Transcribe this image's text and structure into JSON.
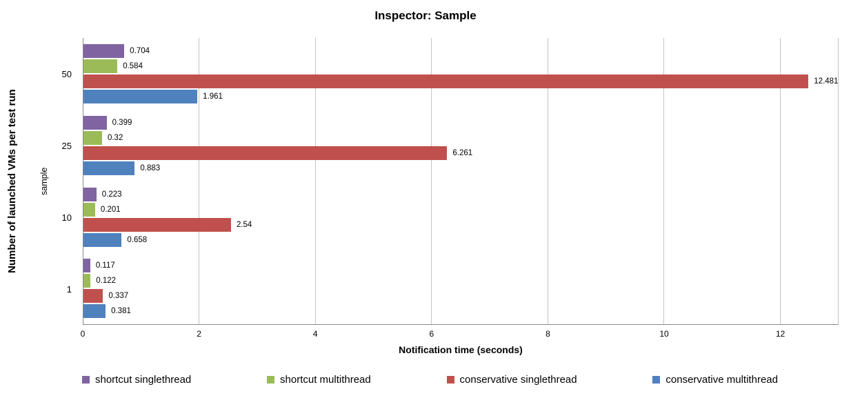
{
  "title": "Inspector: Sample",
  "chart_data": {
    "type": "bar",
    "orientation": "horizontal",
    "title": "Inspector: Sample",
    "xlabel": "Notification time (seconds)",
    "ylabel": "Number of launched VMs per test run",
    "ylabel_inner": "sample",
    "categories": [
      "50",
      "25",
      "10",
      "1"
    ],
    "series": [
      {
        "name": "shortcut singlethread",
        "color": "#8064A2",
        "values": [
          0.704,
          0.399,
          0.223,
          0.117
        ],
        "labels": [
          "0.704",
          "0.399",
          "0.223",
          "0.117"
        ]
      },
      {
        "name": "shortcut multithread",
        "color": "#9BBB59",
        "values": [
          0.584,
          0.32,
          0.201,
          0.122
        ],
        "labels": [
          "0.584",
          "0.32",
          "0.201",
          "0.122"
        ]
      },
      {
        "name": "conservative singlethread",
        "color": "#C0504D",
        "values": [
          12.481,
          6.261,
          2.54,
          0.337
        ],
        "labels": [
          "12.481",
          "6.261",
          "2.54",
          "0.337"
        ]
      },
      {
        "name": "conservative multithread",
        "color": "#4F81BD",
        "values": [
          1.961,
          0.883,
          0.658,
          0.381
        ],
        "labels": [
          "1.961",
          "0.883",
          "0.658",
          "0.381"
        ]
      }
    ],
    "xlim": [
      0,
      13
    ],
    "xticks": [
      0,
      2,
      4,
      6,
      8,
      10,
      12
    ],
    "grid": true,
    "legend_position": "bottom"
  },
  "colors": {
    "grid": "#c3c3c3",
    "axis": "#898989",
    "text": "#000000"
  }
}
